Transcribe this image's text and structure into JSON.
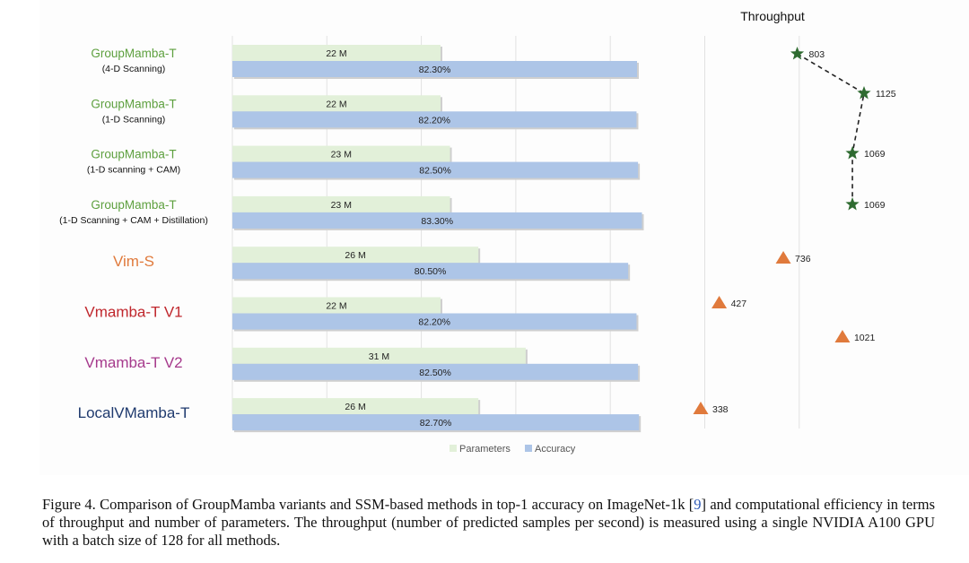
{
  "chart_data": {
    "type": "bar",
    "orientation": "horizontal",
    "categories": [
      {
        "name": "GroupMamba-T",
        "sub": "(4-D Scanning)",
        "color": "#5ea03f"
      },
      {
        "name": "GroupMamba-T",
        "sub": "(1-D Scanning)",
        "color": "#5ea03f"
      },
      {
        "name": "GroupMamba-T",
        "sub": "(1-D scanning + CAM)",
        "color": "#5ea03f"
      },
      {
        "name": "GroupMamba-T",
        "sub": "(1-D Scanning + CAM + Distillation)",
        "color": "#5ea03f"
      },
      {
        "name": "Vim-S",
        "sub": "",
        "color": "#e07a3c"
      },
      {
        "name": "Vmamba-T V1",
        "sub": "",
        "color": "#c0272d"
      },
      {
        "name": "Vmamba-T V2",
        "sub": "",
        "color": "#a63a8c"
      },
      {
        "name": "LocalVMamba-T",
        "sub": "",
        "color": "#1f3a6e"
      }
    ],
    "series": [
      {
        "name": "Parameters",
        "color": "#e2f0d9",
        "values": [
          22,
          22,
          23,
          23,
          26,
          22,
          31,
          26
        ],
        "labels": [
          "22 M",
          "22 M",
          "23 M",
          "23 M",
          "26 M",
          "22 M",
          "31 M",
          "26 M"
        ]
      },
      {
        "name": "Accuracy",
        "color": "#adc5e7",
        "values": [
          82.3,
          82.2,
          82.5,
          83.3,
          80.5,
          82.2,
          82.5,
          82.7
        ],
        "labels": [
          "82.30%",
          "82.20%",
          "82.50%",
          "83.30%",
          "80.50%",
          "82.20%",
          "82.50%",
          "82.70%"
        ]
      }
    ],
    "throughput": {
      "title": "Throughput",
      "values": [
        803,
        1125,
        1069,
        1069,
        736,
        427,
        1021,
        338
      ],
      "labels": [
        "803",
        "1125",
        "1069",
        "1069",
        "736",
        "427",
        "1021",
        "338"
      ],
      "markers": [
        "star",
        "star",
        "star",
        "star",
        "triangle",
        "triangle",
        "triangle",
        "triangle"
      ],
      "star_color": "#2e6b30",
      "triangle_color": "#e07a3c",
      "connected": [
        0,
        1,
        2,
        3
      ]
    },
    "legend": {
      "position": "bottom-center",
      "items": [
        "Parameters",
        "Accuracy"
      ]
    },
    "grid": true
  },
  "caption": {
    "text_before_ref": "Figure 4. Comparison of GroupMamba variants and SSM-based methods in top-1 accuracy on ImageNet-1k [",
    "ref": "9",
    "text_after_ref": "] and computational efficiency in terms of throughput and number of parameters. The throughput (number of predicted samples per second) is measured using a single NVIDIA A100 GPU with a batch size of 128 for all methods."
  }
}
